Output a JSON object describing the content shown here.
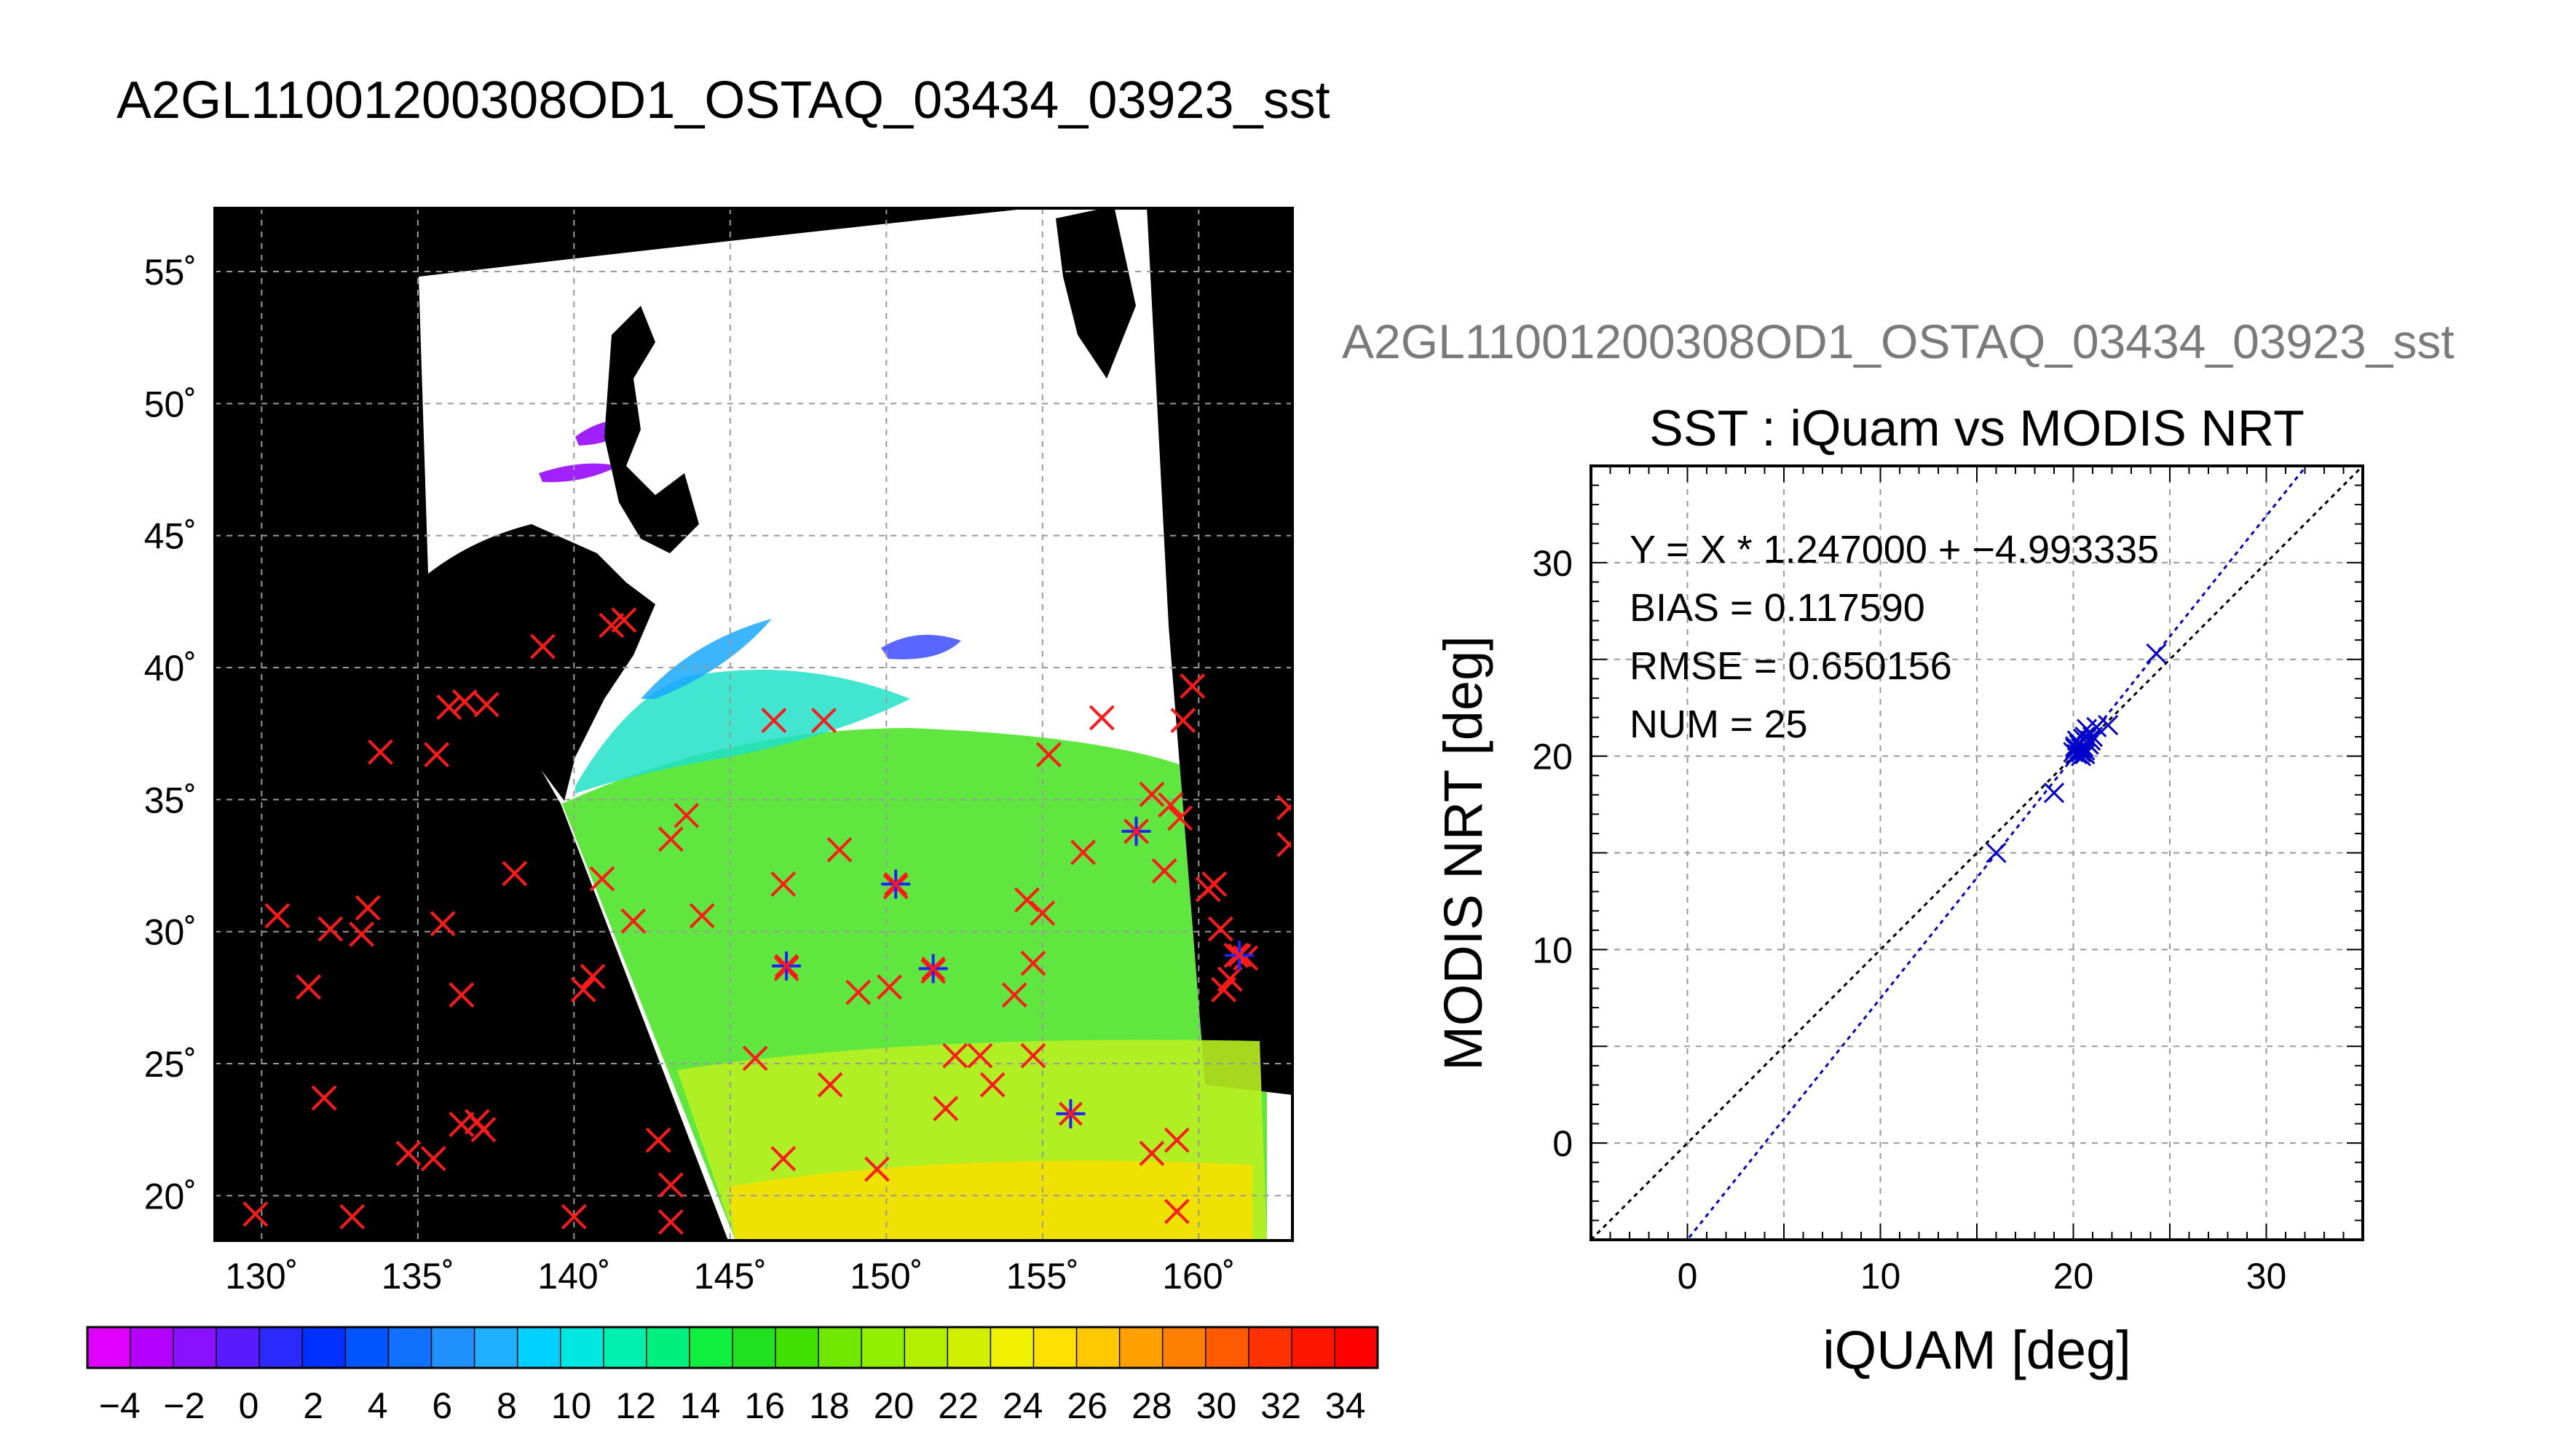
{
  "figure_title": "A2GL11001200308OD1_OSTAQ_03434_03923_sst",
  "chart_data": [
    {
      "type": "map",
      "lon_ticks": [
        "130˚",
        "135˚",
        "140˚",
        "145˚",
        "150˚",
        "155˚",
        "160˚"
      ],
      "lat_ticks": [
        "20˚",
        "25˚",
        "30˚",
        "35˚",
        "40˚",
        "45˚",
        "50˚",
        "55˚"
      ],
      "xlim": [
        128.5,
        163.0
      ],
      "ylim": [
        18.3,
        57.4
      ],
      "grid": true,
      "colorbar": {
        "tick_labels": [
          "−4",
          "−2",
          "0",
          "2",
          "4",
          "6",
          "8",
          "10",
          "12",
          "14",
          "16",
          "18",
          "20",
          "22",
          "24",
          "26",
          "28",
          "30",
          "32",
          "34"
        ],
        "range": [
          -5,
          35
        ],
        "colors": [
          "#e000ff",
          "#b400ff",
          "#8a10ff",
          "#5a1aff",
          "#2a2aff",
          "#0032ff",
          "#0055ff",
          "#1070ff",
          "#2090ff",
          "#20b0ff",
          "#00d0ff",
          "#00e8e0",
          "#00f0b0",
          "#00f080",
          "#10f040",
          "#20e020",
          "#40e000",
          "#70e800",
          "#90f000",
          "#b0f000",
          "#d0f000",
          "#f0f000",
          "#ffe000",
          "#ffc800",
          "#ffa000",
          "#ff8000",
          "#ff5a00",
          "#ff3200",
          "#ff1400",
          "#ff0000"
        ]
      },
      "markers_red_x": [
        [
          129.8,
          19.3
        ],
        [
          130.5,
          30.6
        ],
        [
          131.5,
          27.9
        ],
        [
          132.0,
          23.7
        ],
        [
          132.2,
          30.1
        ],
        [
          132.9,
          19.2
        ],
        [
          133.2,
          29.9
        ],
        [
          133.4,
          30.9
        ],
        [
          133.8,
          36.8
        ],
        [
          134.7,
          21.6
        ],
        [
          135.5,
          21.4
        ],
        [
          135.6,
          36.7
        ],
        [
          135.8,
          30.3
        ],
        [
          136.0,
          38.5
        ],
        [
          136.4,
          27.6
        ],
        [
          136.4,
          22.7
        ],
        [
          136.5,
          38.7
        ],
        [
          136.9,
          22.8
        ],
        [
          137.1,
          22.5
        ],
        [
          137.2,
          38.6
        ],
        [
          138.1,
          32.2
        ],
        [
          139.0,
          40.8
        ],
        [
          140.0,
          19.2
        ],
        [
          140.3,
          27.8
        ],
        [
          140.6,
          28.3
        ],
        [
          140.9,
          32.0
        ],
        [
          141.2,
          41.6
        ],
        [
          141.6,
          41.8
        ],
        [
          141.9,
          30.4
        ],
        [
          142.7,
          22.1
        ],
        [
          143.1,
          20.4
        ],
        [
          143.1,
          19.0
        ],
        [
          143.1,
          33.5
        ],
        [
          143.6,
          34.4
        ],
        [
          144.1,
          30.6
        ],
        [
          145.8,
          25.2
        ],
        [
          146.4,
          38.0
        ],
        [
          146.7,
          21.4
        ],
        [
          146.7,
          31.8
        ],
        [
          146.8,
          28.6
        ],
        [
          148.0,
          38.0
        ],
        [
          148.2,
          24.2
        ],
        [
          148.5,
          33.1
        ],
        [
          149.1,
          27.7
        ],
        [
          149.7,
          21.0
        ],
        [
          150.1,
          27.9
        ],
        [
          150.3,
          31.7
        ],
        [
          151.5,
          28.5
        ],
        [
          151.9,
          23.3
        ],
        [
          152.2,
          25.3
        ],
        [
          153.0,
          25.3
        ],
        [
          153.4,
          24.2
        ],
        [
          154.1,
          27.6
        ],
        [
          154.5,
          31.2
        ],
        [
          154.7,
          25.3
        ],
        [
          154.7,
          28.8
        ],
        [
          155.0,
          30.7
        ],
        [
          155.2,
          36.7
        ],
        [
          156.3,
          33.0
        ],
        [
          156.9,
          38.1
        ],
        [
          158.0,
          33.8
        ],
        [
          158.5,
          21.6
        ],
        [
          158.5,
          35.2
        ],
        [
          158.9,
          32.3
        ],
        [
          159.1,
          34.8
        ],
        [
          159.3,
          22.1
        ],
        [
          159.3,
          19.4
        ],
        [
          159.4,
          34.3
        ],
        [
          159.5,
          38.0
        ],
        [
          159.8,
          39.3
        ],
        [
          160.3,
          31.6
        ],
        [
          160.5,
          31.8
        ],
        [
          160.7,
          30.1
        ],
        [
          160.8,
          27.8
        ],
        [
          161.0,
          28.2
        ],
        [
          161.2,
          29.1
        ],
        [
          161.5,
          29.0
        ],
        [
          162.9,
          34.7
        ],
        [
          162.9,
          33.3
        ]
      ],
      "markers_blue_star": [
        [
          146.8,
          28.7
        ],
        [
          150.3,
          31.8
        ],
        [
          151.5,
          28.6
        ],
        [
          155.9,
          23.1
        ],
        [
          158.0,
          33.8
        ],
        [
          161.3,
          29.1
        ]
      ]
    },
    {
      "type": "scatter",
      "subplot_title": "A2GL11001200308OD1_OSTAQ_03434_03923_sst",
      "title": "SST : iQuam vs MODIS NRT",
      "xlabel": "iQUAM [deg]",
      "ylabel": "MODIS NRT [deg]",
      "xlim": [
        -5,
        35
      ],
      "ylim": [
        -5,
        35
      ],
      "x_ticks": [
        "0",
        "10",
        "20",
        "30"
      ],
      "y_ticks": [
        "0",
        "10",
        "20",
        "30"
      ],
      "grid": true,
      "stats": [
        "Y = X * 1.247000 + −4.993335",
        "BIAS = 0.117590",
        "RMSE = 0.650156",
        "NUM = 25"
      ],
      "fit": {
        "slope": 1.247,
        "intercept": -4.993335,
        "color": "#0000cc"
      },
      "identity_line_color": "#000000",
      "marker_color": "#0000cc",
      "x": [
        16.0,
        19.0,
        20.0,
        20.1,
        20.2,
        20.3,
        20.4,
        20.5,
        20.6,
        20.7,
        20.2,
        20.4,
        20.6,
        20.8,
        20.3,
        20.5,
        20.9,
        20.1,
        20.7,
        21.0,
        21.2,
        21.8,
        24.3,
        20.4,
        20.6
      ],
      "y": [
        15.0,
        18.1,
        20.2,
        20.4,
        20.1,
        20.6,
        20.0,
        20.5,
        20.3,
        20.7,
        20.8,
        20.2,
        21.0,
        20.6,
        20.3,
        20.9,
        20.8,
        20.5,
        21.4,
        21.0,
        21.5,
        21.6,
        25.3,
        20.4,
        20.1
      ]
    }
  ]
}
